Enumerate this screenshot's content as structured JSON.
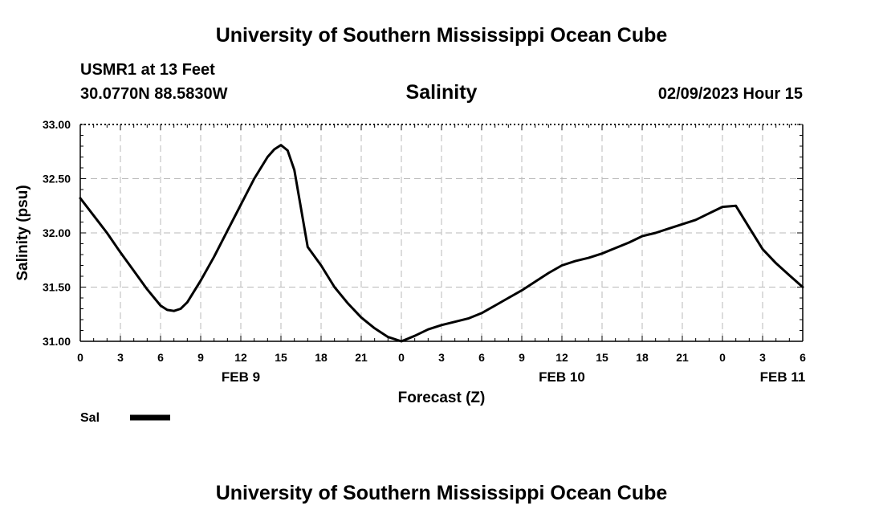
{
  "page": {
    "title_top": "University of Southern Mississippi Ocean Cube",
    "title_bottom": "University of Southern Mississippi Ocean Cube",
    "station": "USMR1 at 13 Feet",
    "coords": "30.0770N  88.5830W",
    "variable_title": "Salinity",
    "datestamp": "02/09/2023 Hour 15"
  },
  "chart_data": {
    "type": "line",
    "title": "Salinity",
    "xlabel": "Forecast (Z)",
    "ylabel": "Salinity (psu)",
    "ylim": [
      31.0,
      33.0
    ],
    "xlim": [
      0,
      54
    ],
    "y_ticks": [
      "31.00",
      "31.50",
      "32.00",
      "32.50",
      "33.00"
    ],
    "y_tick_values": [
      31.0,
      31.5,
      32.0,
      32.5,
      33.0
    ],
    "x_tick_hours": [
      0,
      3,
      6,
      9,
      12,
      15,
      18,
      21,
      24,
      27,
      30,
      33,
      36,
      39,
      42,
      45,
      48,
      51,
      54
    ],
    "x_tick_labels": [
      "0",
      "3",
      "6",
      "9",
      "12",
      "15",
      "18",
      "21",
      "0",
      "3",
      "6",
      "9",
      "12",
      "15",
      "18",
      "21",
      "0",
      "3",
      "6"
    ],
    "day_labels": [
      {
        "label": "FEB 9",
        "hour": 12
      },
      {
        "label": "FEB 10",
        "hour": 36
      },
      {
        "label": "FEB 11",
        "hour": 52.5
      }
    ],
    "grid": true,
    "legend": {
      "placement": "bottom-left",
      "entries": [
        {
          "name": "Sal"
        }
      ]
    },
    "series": [
      {
        "name": "Sal",
        "x": [
          0,
          1,
          2,
          3,
          4,
          5,
          6,
          6.5,
          7,
          7.5,
          8,
          9,
          10,
          11,
          12,
          13,
          14,
          14.5,
          15,
          15.5,
          16,
          17,
          18,
          19,
          20,
          21,
          22,
          23,
          24,
          25,
          26,
          27,
          28,
          29,
          30,
          31,
          32,
          33,
          34,
          35,
          36,
          37,
          38,
          39,
          40,
          41,
          42,
          43,
          44,
          45,
          46,
          47,
          48,
          49,
          50,
          51,
          52,
          53,
          54
        ],
        "values": [
          32.32,
          32.16,
          32.0,
          31.82,
          31.65,
          31.48,
          31.33,
          31.29,
          31.28,
          31.3,
          31.36,
          31.56,
          31.78,
          32.02,
          32.26,
          32.5,
          32.7,
          32.77,
          32.81,
          32.76,
          32.58,
          31.87,
          31.7,
          31.5,
          31.35,
          31.22,
          31.12,
          31.04,
          31.0,
          31.05,
          31.11,
          31.15,
          31.18,
          31.21,
          31.26,
          31.33,
          31.4,
          31.47,
          31.55,
          31.63,
          31.7,
          31.74,
          31.77,
          31.81,
          31.86,
          31.91,
          31.97,
          32.0,
          32.04,
          32.08,
          32.12,
          32.18,
          32.24,
          32.25,
          32.05,
          31.85,
          31.72,
          31.61,
          31.5
        ]
      }
    ]
  }
}
